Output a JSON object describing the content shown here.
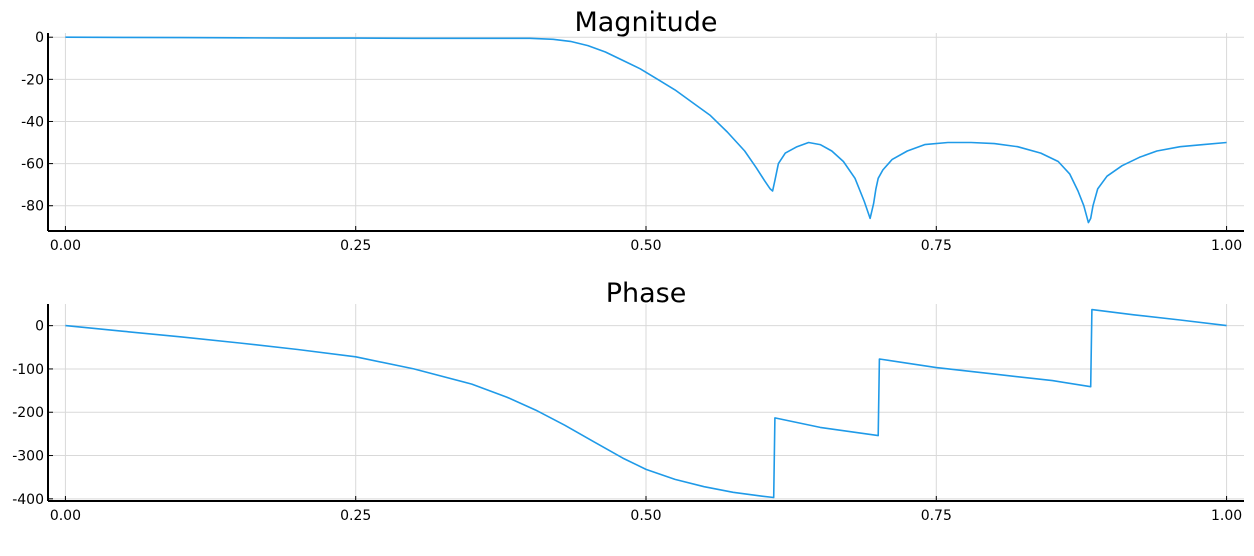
{
  "chart_data": [
    {
      "type": "line",
      "title": "Magnitude",
      "xlabel": "",
      "ylabel": "",
      "xlim": [
        -0.015,
        1.015
      ],
      "ylim": [
        -92,
        2
      ],
      "xticks": [
        0.0,
        0.25,
        0.5,
        0.75,
        1.0
      ],
      "xtick_labels": [
        "0.00",
        "0.25",
        "0.50",
        "0.75",
        "1.00"
      ],
      "yticks": [
        0,
        -20,
        -40,
        -60,
        -80
      ],
      "ytick_labels": [
        "0",
        "-20",
        "-40",
        "-60",
        "-80"
      ],
      "grid": true,
      "series": [
        {
          "name": "Magnitude",
          "color": "#1f9ae8",
          "x": [
            0.0,
            0.05,
            0.1,
            0.15,
            0.2,
            0.25,
            0.3,
            0.35,
            0.4,
            0.42,
            0.435,
            0.45,
            0.465,
            0.48,
            0.495,
            0.51,
            0.525,
            0.54,
            0.555,
            0.57,
            0.585,
            0.595,
            0.602,
            0.607,
            0.609,
            0.611,
            0.614,
            0.62,
            0.63,
            0.64,
            0.65,
            0.66,
            0.67,
            0.68,
            0.688,
            0.693,
            0.696,
            0.698,
            0.7,
            0.704,
            0.712,
            0.725,
            0.74,
            0.76,
            0.78,
            0.8,
            0.82,
            0.84,
            0.855,
            0.865,
            0.872,
            0.877,
            0.881,
            0.883,
            0.885,
            0.889,
            0.897,
            0.91,
            0.925,
            0.94,
            0.96,
            0.98,
            1.0
          ],
          "y": [
            0,
            -0.1,
            -0.2,
            -0.3,
            -0.4,
            -0.4,
            -0.5,
            -0.5,
            -0.5,
            -1,
            -2,
            -4,
            -7,
            -11,
            -15,
            -20,
            -25,
            -31,
            -37,
            -45,
            -54,
            -62,
            -68,
            -72,
            -73,
            -68,
            -60,
            -55,
            -52,
            -50,
            -51,
            -54,
            -59,
            -67,
            -78,
            -86,
            -79,
            -72,
            -67,
            -63,
            -58,
            -54,
            -51,
            -50,
            -50,
            -50.5,
            -52,
            -55,
            -59,
            -65,
            -73,
            -80,
            -88,
            -86,
            -80,
            -72,
            -66,
            -61,
            -57,
            -54,
            -52,
            -51,
            -50
          ]
        }
      ]
    },
    {
      "type": "line",
      "title": "Phase",
      "xlabel": "",
      "ylabel": "",
      "xlim": [
        -0.015,
        1.015
      ],
      "ylim": [
        -405,
        50
      ],
      "xticks": [
        0.0,
        0.25,
        0.5,
        0.75,
        1.0
      ],
      "xtick_labels": [
        "0.00",
        "0.25",
        "0.50",
        "0.75",
        "1.00"
      ],
      "yticks": [
        0,
        -100,
        -200,
        -300,
        -400
      ],
      "ytick_labels": [
        "0",
        "-100",
        "-200",
        "-300",
        "-400"
      ],
      "grid": true,
      "series": [
        {
          "name": "Phase",
          "color": "#1f9ae8",
          "x": [
            0.0,
            0.05,
            0.1,
            0.15,
            0.2,
            0.25,
            0.3,
            0.35,
            0.38,
            0.405,
            0.43,
            0.455,
            0.48,
            0.5,
            0.525,
            0.55,
            0.575,
            0.6,
            0.61,
            0.611,
            0.65,
            0.7,
            0.701,
            0.75,
            0.8,
            0.85,
            0.883,
            0.884,
            0.92,
            0.96,
            1.0
          ],
          "y": [
            0,
            -13,
            -26,
            -40,
            -55,
            -72,
            -100,
            -135,
            -165,
            -195,
            -230,
            -268,
            -306,
            -332,
            -355,
            -372,
            -385,
            -394,
            -397,
            -213,
            -235,
            -254,
            -77,
            -97,
            -112,
            -127,
            -141,
            37,
            25,
            13,
            0
          ]
        }
      ]
    }
  ]
}
